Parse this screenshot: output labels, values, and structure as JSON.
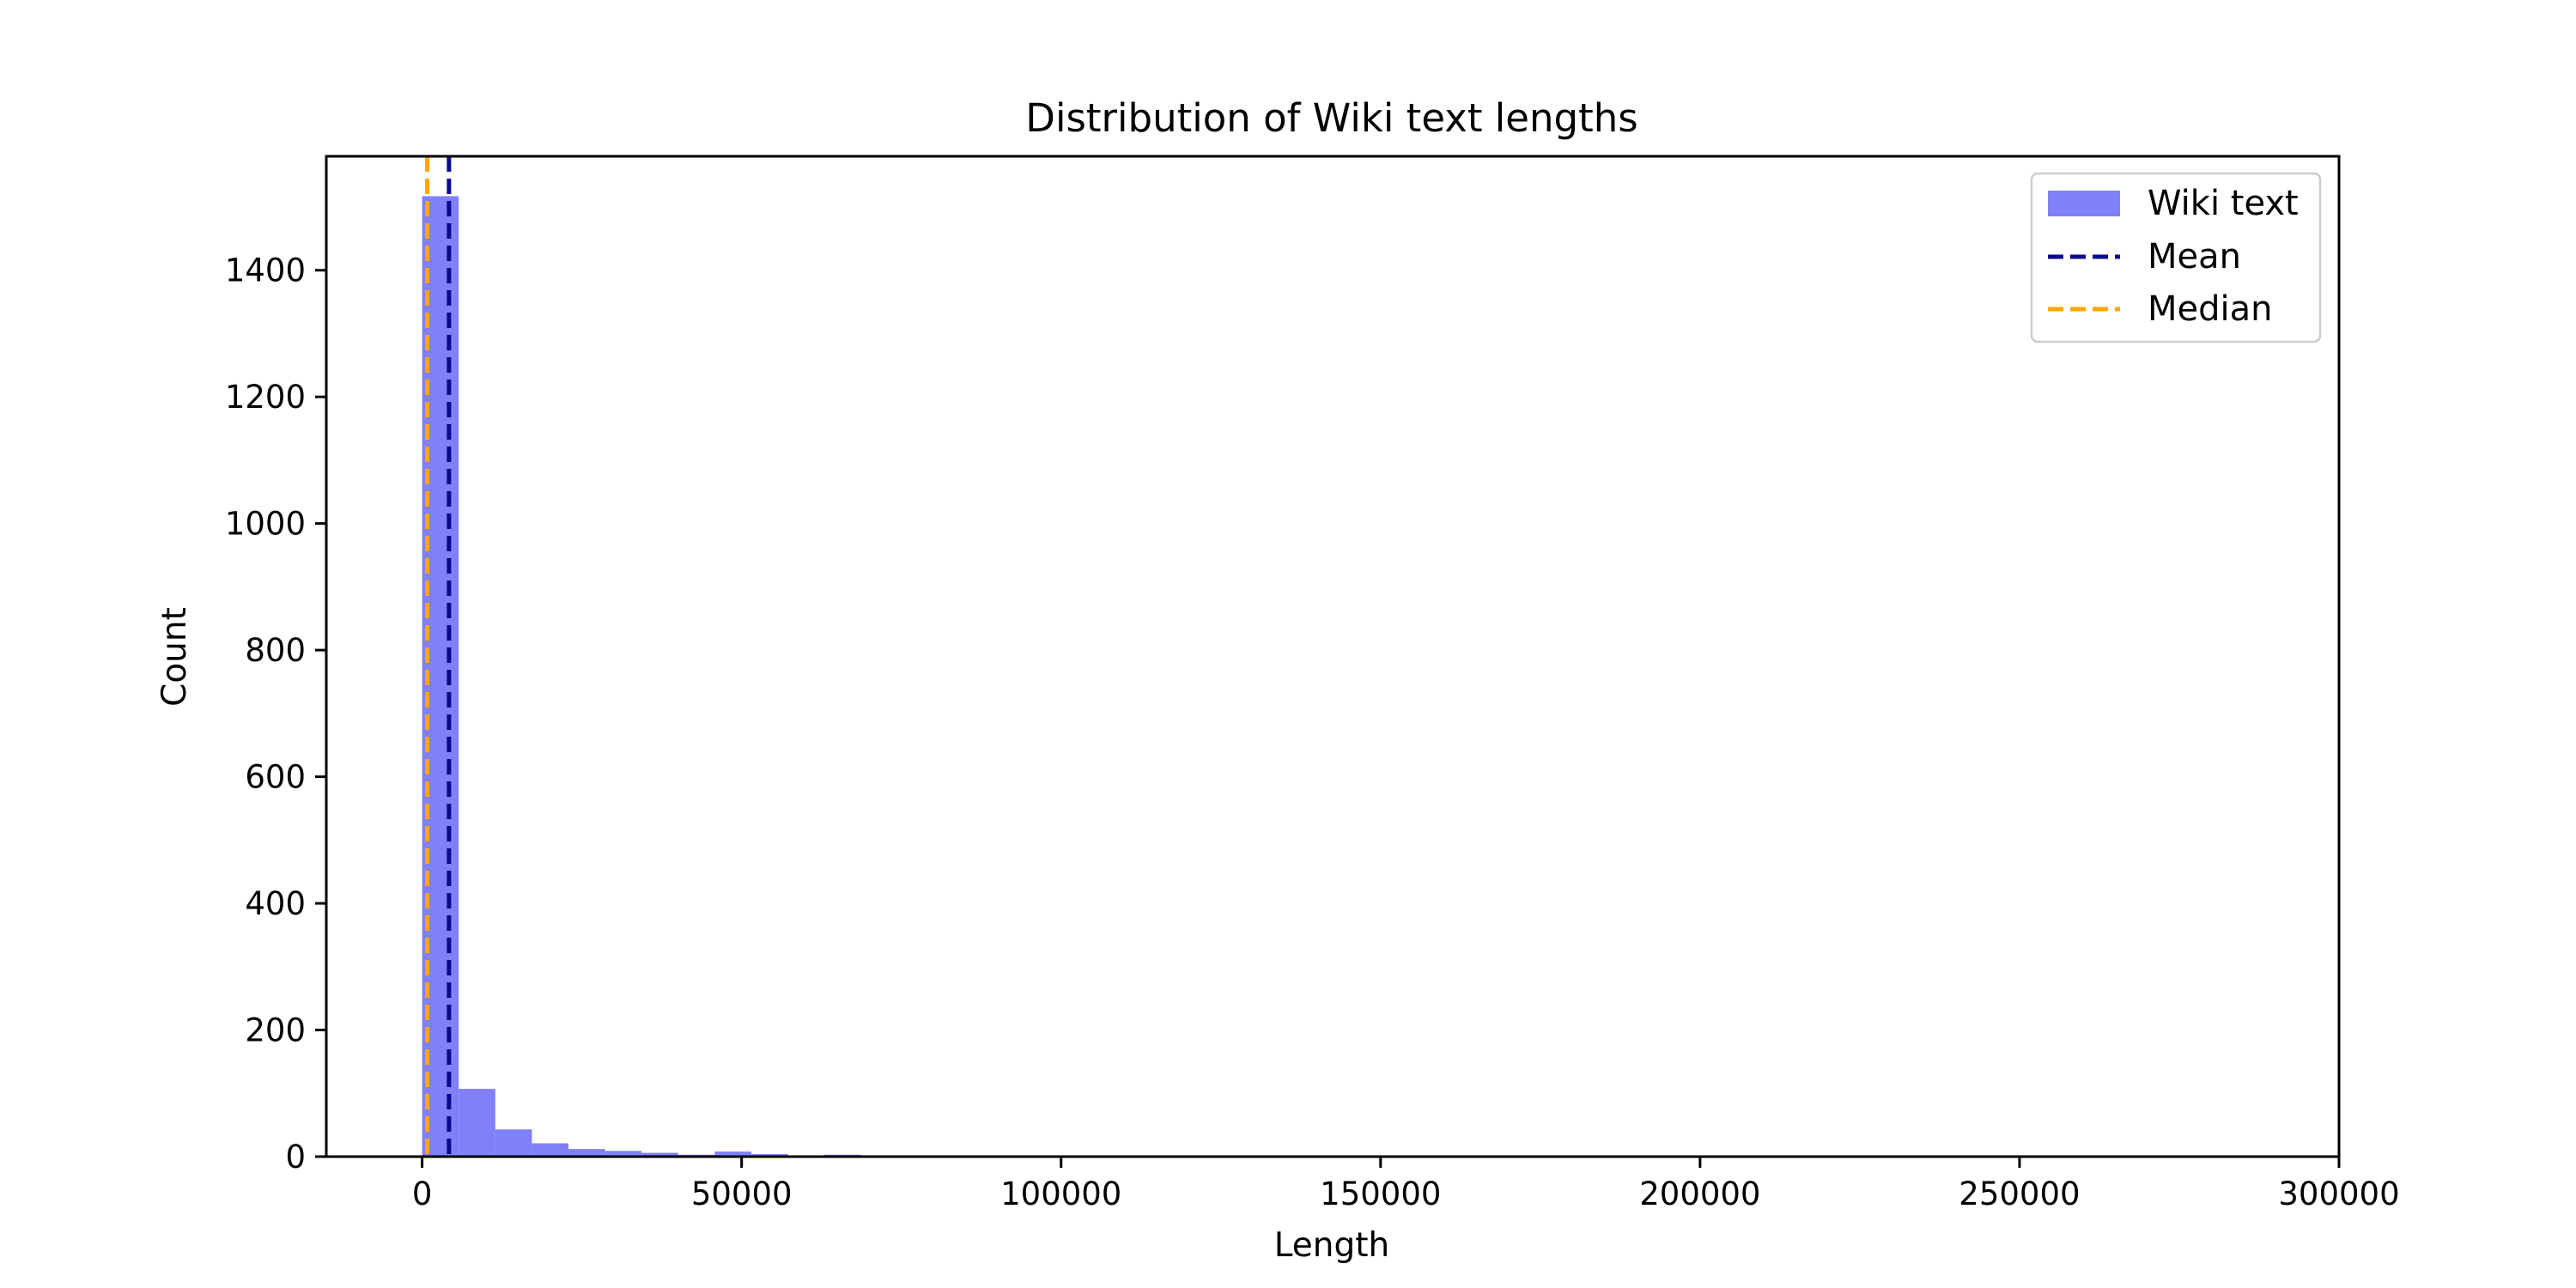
{
  "chart_data": {
    "type": "bar",
    "title": "Distribution of Wiki text lengths",
    "xlabel": "Length",
    "ylabel": "Count",
    "xlim": [
      -15000,
      300000
    ],
    "ylim": [
      0,
      1580
    ],
    "xticks": [
      0,
      50000,
      100000,
      150000,
      200000,
      250000,
      300000
    ],
    "yticks": [
      0,
      200,
      400,
      600,
      800,
      1000,
      1200,
      1400
    ],
    "bin_width": 5725,
    "bin_start": 0,
    "series": [
      {
        "name": "Wiki text",
        "color": "#8080f8",
        "values": [
          1517,
          107,
          43,
          21,
          12,
          9,
          6,
          3,
          8,
          4,
          2,
          3,
          0,
          0,
          0,
          0,
          0,
          0,
          0,
          0,
          0,
          0,
          0,
          0,
          0,
          0,
          0,
          0,
          0,
          0,
          0,
          0,
          0,
          0,
          0,
          0,
          0,
          0,
          0,
          0,
          0,
          0,
          0,
          0,
          0,
          0,
          0,
          0,
          0,
          1
        ]
      }
    ],
    "reference_lines": [
      {
        "name": "Mean",
        "x": 4200,
        "color": "#0a0a8c",
        "style": "dashed"
      },
      {
        "name": "Median",
        "x": 800,
        "color": "#ffa500",
        "style": "dashed"
      }
    ],
    "legend": {
      "position": "top-right",
      "entries": [
        "Wiki text",
        "Mean",
        "Median"
      ]
    },
    "grid": false
  }
}
